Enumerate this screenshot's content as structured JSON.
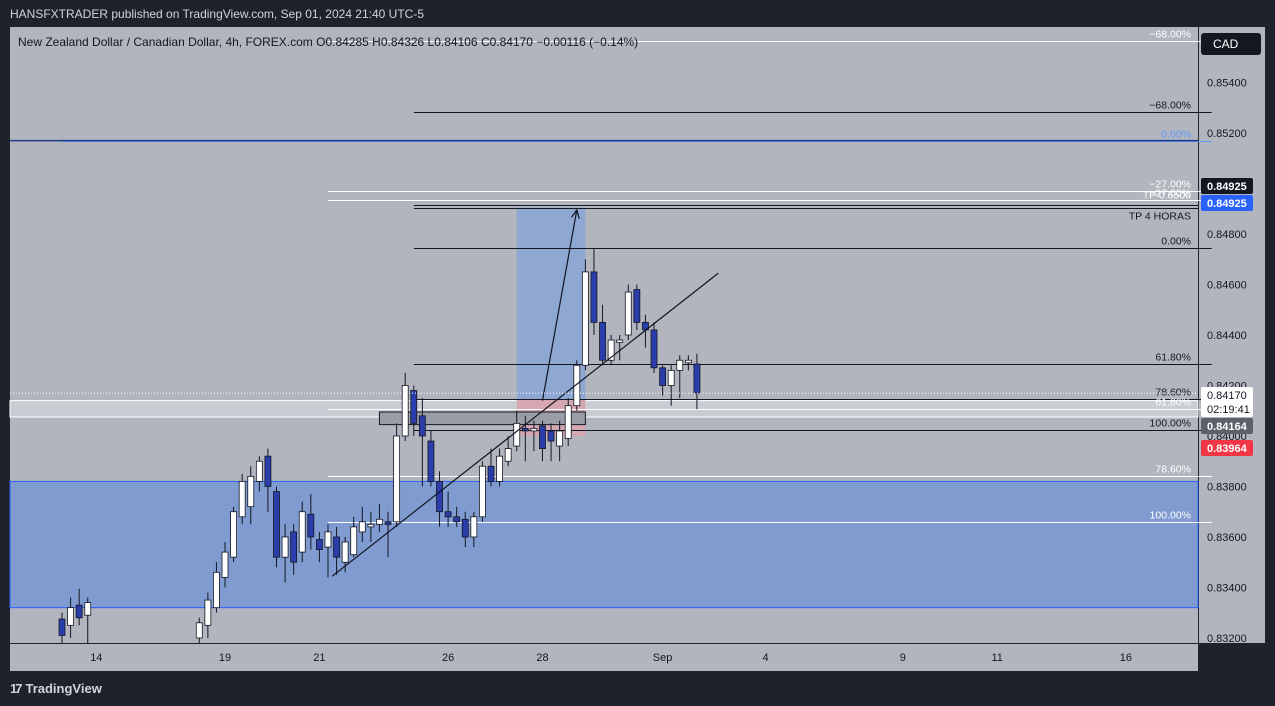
{
  "header": {
    "publisher_line": "HANSFXTRADER published on TradingView.com, Sep 01, 2024 21:40 UTC-5",
    "symbol_line": "New Zealand Dollar / Canadian Dollar, 4h, FOREX.com  O0.84285  H0.84326  L0.84106  C0.84170  −0.00116 (−0.14%)",
    "currency_button": "CAD"
  },
  "footer": {
    "brand": "TradingView"
  },
  "colors": {
    "background": "#b2b5be",
    "chrome": "#1e222d",
    "bull_candle": "#ffffff",
    "bear_candle": "#2a3dab",
    "demand_zone": "#7f9bd0",
    "target_zone": "#8ea7d3",
    "stop_zone": "#d4a7b1",
    "target_label": "#2962ff",
    "stop_label": "#f23645",
    "price_label": "#131722"
  },
  "chart_data": {
    "type": "candlestick",
    "symbol": "New Zealand Dollar / Canadian Dollar",
    "timeframe": "4h",
    "broker": "FOREX.com",
    "ohlc_last": {
      "open": 0.84285,
      "high": 0.84326,
      "low": 0.84106,
      "close": 0.8417,
      "change": -0.00116,
      "change_pct": -0.14
    },
    "x_labels": [
      "14",
      "19",
      "21",
      "26",
      "28",
      "Sep",
      "4",
      "9",
      "11",
      "16"
    ],
    "y_ticks": [
      "0.85400",
      "0.85200",
      "0.85000",
      "0.84800",
      "0.84600",
      "0.84400",
      "0.84200",
      "0.84000",
      "0.83800",
      "0.83600",
      "0.83400",
      "0.83200"
    ],
    "y_range": [
      0.8318,
      0.8562
    ],
    "price_labels": [
      {
        "text": "0.84925",
        "style": "dark",
        "price": 0.84925
      },
      {
        "text": "0.84925",
        "style": "target",
        "price": 0.84905
      },
      {
        "text": "0.84170",
        "style": "current",
        "price": 0.8417
      },
      {
        "text": "02:19:41",
        "style": "countdown",
        "price": 0.84152
      },
      {
        "text": "0.84164",
        "style": "gray",
        "price": 0.84164
      },
      {
        "text": "0.83964",
        "style": "stop",
        "price": 0.8398
      }
    ],
    "fib_levels": [
      {
        "label": "−68.00%",
        "price": 0.85565,
        "color": "#ffffff",
        "from": 31,
        "to": 134
      },
      {
        "label": "−68.00%",
        "price": 0.85285,
        "color": "#131722",
        "from": 41,
        "to": 134
      },
      {
        "label": "0.00%",
        "price": 0.8517,
        "color": "#5b9cf6",
        "from": 0,
        "to": 134
      },
      {
        "label": "−27.00%",
        "price": 0.8497,
        "color": "#ffffff",
        "from": 31,
        "to": 134
      },
      {
        "label": "−27.00%",
        "price": 0.84935,
        "color": "#ffffff",
        "from": 31,
        "to": 134
      },
      {
        "label": "0.00%",
        "price": 0.84745,
        "color": "#131722",
        "from": 41,
        "to": 134
      },
      {
        "label": "61.80%",
        "price": 0.84285,
        "color": "#131722",
        "from": 41,
        "to": 134
      },
      {
        "label": "78.60%",
        "price": 0.84145,
        "color": "#131722",
        "from": 41,
        "to": 134
      },
      {
        "label": "61.80%",
        "price": 0.84105,
        "color": "#ffffff",
        "from": 31,
        "to": 134
      },
      {
        "label": "100.00%",
        "price": 0.84025,
        "color": "#131722",
        "from": 41,
        "to": 134
      },
      {
        "label": "78.60%",
        "price": 0.8384,
        "color": "#ffffff",
        "from": 31,
        "to": 134
      },
      {
        "label": "100.00%",
        "price": 0.8366,
        "color": "#ffffff",
        "from": 31,
        "to": 134
      }
    ],
    "annotations": {
      "tp_text": "TP 4 HORAS",
      "tp_overlay_text": "TP 0.6500",
      "tp_price": 0.84905
    },
    "position": {
      "entry": 0.84145,
      "target": 0.84905,
      "stop": 0.84,
      "from": 53,
      "to": 61
    },
    "demand_zone": {
      "top": 0.8382,
      "bottom": 0.8332
    },
    "gray_band": {
      "top": 0.8414,
      "bottom": 0.84075
    },
    "order_block": {
      "top": 0.84095,
      "bottom": 0.84045,
      "from": 37,
      "to": 61
    },
    "trendline": {
      "from": [
        31.5,
        0.83445
      ],
      "to": [
        76.5,
        0.84645
      ]
    },
    "candles": [
      {
        "i": 0,
        "o": 0.83275,
        "h": 0.833,
        "l": 0.8318,
        "c": 0.8321
      },
      {
        "i": 1,
        "o": 0.8325,
        "h": 0.8336,
        "l": 0.832,
        "c": 0.8332
      },
      {
        "i": 2,
        "o": 0.8333,
        "h": 0.83395,
        "l": 0.8325,
        "c": 0.8328
      },
      {
        "i": 3,
        "o": 0.8329,
        "h": 0.8336,
        "l": 0.8318,
        "c": 0.8334
      },
      {
        "i": 16,
        "o": 0.832,
        "h": 0.8328,
        "l": 0.8318,
        "c": 0.8326
      },
      {
        "i": 17,
        "o": 0.8325,
        "h": 0.8338,
        "l": 0.832,
        "c": 0.8335
      },
      {
        "i": 18,
        "o": 0.8332,
        "h": 0.835,
        "l": 0.833,
        "c": 0.8346
      },
      {
        "i": 19,
        "o": 0.8344,
        "h": 0.8358,
        "l": 0.834,
        "c": 0.8354
      },
      {
        "i": 20,
        "o": 0.8352,
        "h": 0.8372,
        "l": 0.835,
        "c": 0.837
      },
      {
        "i": 21,
        "o": 0.8368,
        "h": 0.8385,
        "l": 0.8365,
        "c": 0.8382
      },
      {
        "i": 22,
        "o": 0.8372,
        "h": 0.8388,
        "l": 0.8365,
        "c": 0.8384
      },
      {
        "i": 23,
        "o": 0.8382,
        "h": 0.8392,
        "l": 0.8378,
        "c": 0.839
      },
      {
        "i": 24,
        "o": 0.8392,
        "h": 0.8395,
        "l": 0.837,
        "c": 0.838
      },
      {
        "i": 25,
        "o": 0.8378,
        "h": 0.838,
        "l": 0.8348,
        "c": 0.8352
      },
      {
        "i": 26,
        "o": 0.8352,
        "h": 0.8365,
        "l": 0.8342,
        "c": 0.836
      },
      {
        "i": 27,
        "o": 0.8362,
        "h": 0.8365,
        "l": 0.8345,
        "c": 0.835
      },
      {
        "i": 28,
        "o": 0.8354,
        "h": 0.8374,
        "l": 0.835,
        "c": 0.837
      },
      {
        "i": 29,
        "o": 0.8369,
        "h": 0.8377,
        "l": 0.8355,
        "c": 0.836
      },
      {
        "i": 30,
        "o": 0.8359,
        "h": 0.8362,
        "l": 0.835,
        "c": 0.8355
      },
      {
        "i": 31,
        "o": 0.8356,
        "h": 0.8365,
        "l": 0.8344,
        "c": 0.8362
      },
      {
        "i": 32,
        "o": 0.836,
        "h": 0.8364,
        "l": 0.8345,
        "c": 0.8352
      },
      {
        "i": 33,
        "o": 0.835,
        "h": 0.836,
        "l": 0.8346,
        "c": 0.8358
      },
      {
        "i": 34,
        "o": 0.8353,
        "h": 0.8368,
        "l": 0.8352,
        "c": 0.8364
      },
      {
        "i": 35,
        "o": 0.8362,
        "h": 0.8372,
        "l": 0.8358,
        "c": 0.8366
      },
      {
        "i": 36,
        "o": 0.8364,
        "h": 0.837,
        "l": 0.8358,
        "c": 0.8365
      },
      {
        "i": 37,
        "o": 0.8365,
        "h": 0.8373,
        "l": 0.8362,
        "c": 0.8367
      },
      {
        "i": 38,
        "o": 0.8366,
        "h": 0.837,
        "l": 0.8352,
        "c": 0.8365
      },
      {
        "i": 39,
        "o": 0.8366,
        "h": 0.8405,
        "l": 0.8364,
        "c": 0.84
      },
      {
        "i": 40,
        "o": 0.84,
        "h": 0.8425,
        "l": 0.8398,
        "c": 0.842
      },
      {
        "i": 41,
        "o": 0.8418,
        "h": 0.842,
        "l": 0.84,
        "c": 0.8405
      },
      {
        "i": 42,
        "o": 0.8408,
        "h": 0.8415,
        "l": 0.838,
        "c": 0.84
      },
      {
        "i": 43,
        "o": 0.8398,
        "h": 0.8402,
        "l": 0.838,
        "c": 0.8382
      },
      {
        "i": 44,
        "o": 0.8382,
        "h": 0.8386,
        "l": 0.8364,
        "c": 0.837
      },
      {
        "i": 45,
        "o": 0.837,
        "h": 0.8378,
        "l": 0.8364,
        "c": 0.8368
      },
      {
        "i": 46,
        "o": 0.8368,
        "h": 0.8372,
        "l": 0.8364,
        "c": 0.8366
      },
      {
        "i": 47,
        "o": 0.8367,
        "h": 0.837,
        "l": 0.8356,
        "c": 0.836
      },
      {
        "i": 48,
        "o": 0.836,
        "h": 0.837,
        "l": 0.8356,
        "c": 0.8368
      },
      {
        "i": 49,
        "o": 0.8368,
        "h": 0.839,
        "l": 0.8366,
        "c": 0.8388
      },
      {
        "i": 50,
        "o": 0.8388,
        "h": 0.8395,
        "l": 0.838,
        "c": 0.8382
      },
      {
        "i": 51,
        "o": 0.8382,
        "h": 0.8395,
        "l": 0.838,
        "c": 0.8392
      },
      {
        "i": 52,
        "o": 0.839,
        "h": 0.84,
        "l": 0.8388,
        "c": 0.8395
      },
      {
        "i": 53,
        "o": 0.8396,
        "h": 0.841,
        "l": 0.8394,
        "c": 0.8405
      },
      {
        "i": 54,
        "o": 0.8403,
        "h": 0.8408,
        "l": 0.839,
        "c": 0.8402
      },
      {
        "i": 55,
        "o": 0.8402,
        "h": 0.8406,
        "l": 0.8394,
        "c": 0.8403
      },
      {
        "i": 56,
        "o": 0.8404,
        "h": 0.8406,
        "l": 0.839,
        "c": 0.8395
      },
      {
        "i": 57,
        "o": 0.8402,
        "h": 0.8405,
        "l": 0.839,
        "c": 0.8398
      },
      {
        "i": 58,
        "o": 0.8396,
        "h": 0.8406,
        "l": 0.839,
        "c": 0.8402
      },
      {
        "i": 59,
        "o": 0.8399,
        "h": 0.8415,
        "l": 0.8396,
        "c": 0.8412
      },
      {
        "i": 60,
        "o": 0.8412,
        "h": 0.843,
        "l": 0.841,
        "c": 0.8428
      },
      {
        "i": 61,
        "o": 0.8428,
        "h": 0.847,
        "l": 0.8426,
        "c": 0.8465
      },
      {
        "i": 62,
        "o": 0.8465,
        "h": 0.8474,
        "l": 0.844,
        "c": 0.8445
      },
      {
        "i": 63,
        "o": 0.8445,
        "h": 0.8452,
        "l": 0.8428,
        "c": 0.843
      },
      {
        "i": 64,
        "o": 0.843,
        "h": 0.844,
        "l": 0.8428,
        "c": 0.8438
      },
      {
        "i": 65,
        "o": 0.8437,
        "h": 0.844,
        "l": 0.843,
        "c": 0.8438
      },
      {
        "i": 66,
        "o": 0.844,
        "h": 0.846,
        "l": 0.8438,
        "c": 0.8457
      },
      {
        "i": 67,
        "o": 0.8458,
        "h": 0.846,
        "l": 0.8442,
        "c": 0.8445
      },
      {
        "i": 68,
        "o": 0.8445,
        "h": 0.8448,
        "l": 0.8435,
        "c": 0.8442
      },
      {
        "i": 69,
        "o": 0.8442,
        "h": 0.8445,
        "l": 0.8425,
        "c": 0.8427
      },
      {
        "i": 70,
        "o": 0.8427,
        "h": 0.8428,
        "l": 0.8416,
        "c": 0.842
      },
      {
        "i": 71,
        "o": 0.842,
        "h": 0.8428,
        "l": 0.8412,
        "c": 0.8426
      },
      {
        "i": 72,
        "o": 0.8426,
        "h": 0.8432,
        "l": 0.8415,
        "c": 0.843
      },
      {
        "i": 73,
        "o": 0.8429,
        "h": 0.8432,
        "l": 0.8426,
        "c": 0.843
      },
      {
        "i": 74,
        "o": 0.84285,
        "h": 0.84326,
        "l": 0.84106,
        "c": 0.8417
      }
    ]
  }
}
